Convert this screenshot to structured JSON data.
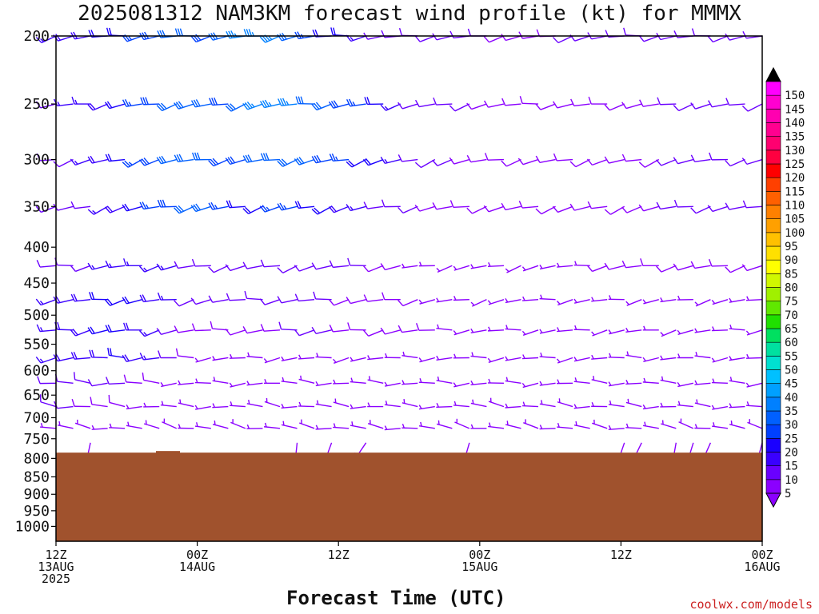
{
  "title": "2025081312 NAM3KM forecast wind profile (kt) for MMMX",
  "credit": "coolwx.com/models",
  "colors": {
    "terrain": "#a0522d",
    "axis": "#000000"
  },
  "chart_data": {
    "type": "wind_barb_time_height",
    "title": "2025081312 NAM3KM forecast wind profile (kt) for MMMX",
    "xlabel": "Forecast Time (UTC)",
    "ylabel": "",
    "y_scale": "log-pressure",
    "y_reversed": true,
    "ylim_hpa": [
      1050,
      200
    ],
    "x_hours_range": [
      0,
      60
    ],
    "yticks": [
      200,
      250,
      300,
      350,
      400,
      450,
      500,
      550,
      600,
      650,
      700,
      750,
      800,
      850,
      900,
      950,
      1000
    ],
    "xticks": [
      {
        "hour": 0,
        "lines": [
          "12Z",
          "13AUG",
          "2025"
        ]
      },
      {
        "hour": 12,
        "lines": [
          "00Z",
          "14AUG"
        ]
      },
      {
        "hour": 24,
        "lines": [
          "12Z"
        ]
      },
      {
        "hour": 36,
        "lines": [
          "00Z",
          "15AUG"
        ]
      },
      {
        "hour": 48,
        "lines": [
          "12Z"
        ]
      },
      {
        "hour": 60,
        "lines": [
          "00Z",
          "16AUG"
        ]
      }
    ],
    "surface_pressure_hpa": 785,
    "colorbar": {
      "unit": "kt",
      "levels": [
        5,
        10,
        15,
        20,
        25,
        30,
        35,
        40,
        45,
        50,
        55,
        60,
        65,
        70,
        75,
        80,
        85,
        90,
        95,
        100,
        105,
        110,
        115,
        120,
        125,
        130,
        135,
        140,
        145,
        150
      ],
      "colors": [
        "#8b00ff",
        "#6a00ff",
        "#3a00ff",
        "#1a00ff",
        "#0040ff",
        "#0060ff",
        "#0080ff",
        "#00a0ff",
        "#00c0ff",
        "#00e0d0",
        "#00e0a0",
        "#00e060",
        "#20e000",
        "#60e800",
        "#a0f000",
        "#d0f800",
        "#ffff00",
        "#ffe000",
        "#ffc000",
        "#ffa000",
        "#ff8000",
        "#ff6000",
        "#ff4000",
        "#ff0000",
        "#ff0040",
        "#ff0070",
        "#ff0090",
        "#ff00b0",
        "#ff00d0",
        "#ff00ff"
      ]
    },
    "series": [
      {
        "level_hpa": 200,
        "dir_deg": 260,
        "speed_kt": [
          15,
          18,
          18,
          20,
          22,
          25,
          28,
          30,
          30,
          28,
          30,
          35,
          35,
          35,
          30,
          25,
          22,
          20,
          15,
          12,
          12,
          10,
          10,
          10,
          10,
          10,
          8,
          8,
          8,
          8,
          10,
          10,
          10,
          12,
          12,
          12,
          12,
          12,
          12,
          12,
          12,
          12
        ]
      },
      {
        "level_hpa": 250,
        "dir_deg": 258,
        "speed_kt": [
          12,
          15,
          15,
          18,
          20,
          25,
          28,
          30,
          30,
          30,
          28,
          30,
          35,
          35,
          35,
          32,
          30,
          28,
          25,
          20,
          15,
          12,
          10,
          10,
          10,
          8,
          8,
          8,
          8,
          8,
          8,
          8,
          8,
          8,
          8,
          8,
          10,
          10,
          10,
          10,
          10,
          10
        ]
      },
      {
        "level_hpa": 300,
        "dir_deg": 255,
        "speed_kt": [
          10,
          12,
          15,
          18,
          20,
          25,
          28,
          30,
          30,
          30,
          28,
          28,
          30,
          30,
          32,
          30,
          28,
          25,
          22,
          20,
          15,
          12,
          10,
          10,
          8,
          8,
          8,
          8,
          8,
          8,
          8,
          8,
          8,
          8,
          8,
          8,
          10,
          10,
          10,
          10,
          10,
          10
        ]
      },
      {
        "level_hpa": 350,
        "dir_deg": 255,
        "speed_kt": [
          10,
          10,
          12,
          15,
          18,
          20,
          25,
          28,
          30,
          30,
          25,
          22,
          22,
          25,
          25,
          22,
          20,
          18,
          15,
          12,
          10,
          10,
          8,
          8,
          8,
          8,
          8,
          8,
          8,
          8,
          8,
          8,
          8,
          8,
          8,
          8,
          10,
          10,
          10,
          10,
          10,
          10
        ]
      },
      {
        "level_hpa": 425,
        "dir_deg": 258,
        "speed_kt": [
          10,
          12,
          12,
          15,
          15,
          15,
          15,
          15,
          12,
          12,
          12,
          12,
          12,
          12,
          12,
          12,
          10,
          10,
          10,
          8,
          8,
          5,
          5,
          5,
          5,
          5,
          5,
          5,
          5,
          5,
          5,
          5,
          8,
          8,
          8,
          8,
          8,
          8,
          8,
          8,
          8,
          8
        ]
      },
      {
        "level_hpa": 475,
        "dir_deg": 260,
        "speed_kt": [
          15,
          18,
          18,
          20,
          20,
          20,
          18,
          15,
          10,
          10,
          10,
          10,
          10,
          10,
          10,
          10,
          10,
          8,
          8,
          8,
          8,
          8,
          5,
          5,
          5,
          5,
          5,
          5,
          5,
          5,
          5,
          5,
          5,
          5,
          5,
          5,
          5,
          5,
          5,
          5,
          5,
          5
        ]
      },
      {
        "level_hpa": 525,
        "dir_deg": 262,
        "speed_kt": [
          15,
          18,
          18,
          20,
          20,
          18,
          15,
          10,
          8,
          8,
          8,
          8,
          8,
          8,
          10,
          10,
          10,
          8,
          8,
          8,
          8,
          8,
          8,
          5,
          5,
          5,
          5,
          5,
          5,
          5,
          5,
          5,
          5,
          5,
          5,
          5,
          5,
          5,
          5,
          5,
          5,
          5
        ]
      },
      {
        "level_hpa": 575,
        "dir_deg": 265,
        "speed_kt": [
          15,
          18,
          18,
          18,
          20,
          18,
          15,
          10,
          8,
          5,
          5,
          5,
          5,
          5,
          5,
          5,
          5,
          5,
          5,
          5,
          5,
          5,
          5,
          5,
          5,
          5,
          5,
          5,
          5,
          5,
          5,
          5,
          5,
          5,
          5,
          5,
          5,
          5,
          5,
          5,
          5,
          5
        ]
      },
      {
        "level_hpa": 625,
        "dir_deg": 270,
        "speed_kt": [
          12,
          12,
          12,
          10,
          10,
          8,
          8,
          5,
          5,
          5,
          5,
          5,
          5,
          5,
          5,
          5,
          5,
          5,
          5,
          5,
          5,
          5,
          5,
          5,
          5,
          5,
          5,
          5,
          5,
          5,
          5,
          5,
          5,
          5,
          5,
          5,
          5,
          5,
          5,
          5,
          5,
          5
        ]
      },
      {
        "level_hpa": 675,
        "dir_deg": 275,
        "speed_kt": [
          10,
          10,
          8,
          8,
          8,
          5,
          5,
          5,
          5,
          5,
          5,
          5,
          5,
          5,
          5,
          5,
          5,
          5,
          5,
          5,
          5,
          5,
          5,
          5,
          5,
          5,
          5,
          5,
          5,
          5,
          5,
          5,
          5,
          5,
          5,
          5,
          5,
          5,
          5,
          5,
          5,
          5
        ]
      },
      {
        "level_hpa": 725,
        "dir_deg": 280,
        "speed_kt": [
          5,
          5,
          5,
          5,
          5,
          5,
          5,
          5,
          5,
          5,
          5,
          5,
          5,
          5,
          5,
          5,
          5,
          5,
          5,
          5,
          5,
          5,
          5,
          5,
          5,
          5,
          5,
          5,
          5,
          5,
          5,
          5,
          5,
          5,
          5,
          5,
          5,
          5,
          5,
          5,
          5,
          5
        ]
      },
      {
        "level_hpa": 760,
        "dir_deg": 200,
        "speed_kt": [
          null,
          null,
          5,
          null,
          null,
          null,
          null,
          null,
          null,
          null,
          null,
          null,
          null,
          null,
          5,
          null,
          5,
          null,
          5,
          null,
          null,
          null,
          null,
          null,
          5,
          null,
          null,
          null,
          null,
          null,
          null,
          null,
          null,
          5,
          5,
          null,
          5,
          5,
          5,
          null,
          null,
          5
        ]
      }
    ]
  }
}
